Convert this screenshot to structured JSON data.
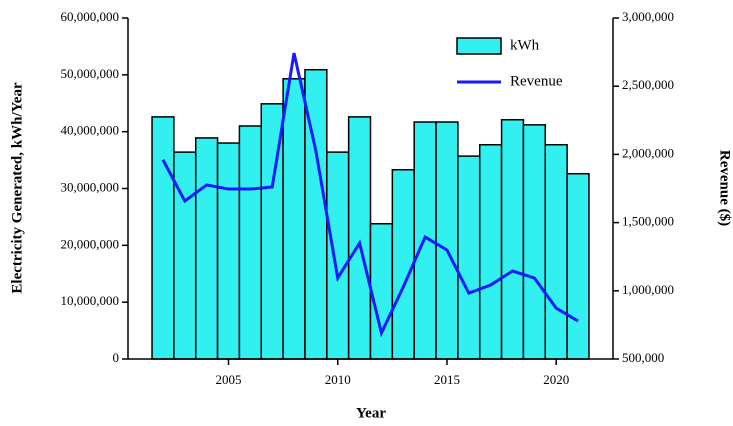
{
  "chart_data": {
    "type": "bar_line",
    "x": [
      2002,
      2003,
      2004,
      2005,
      2006,
      2007,
      2008,
      2009,
      2010,
      2011,
      2012,
      2013,
      2014,
      2015,
      2016,
      2017,
      2018,
      2019,
      2020,
      2021
    ],
    "series": [
      {
        "name": "kWh",
        "type": "bar",
        "color": "#33f0f0",
        "axis": "y",
        "values": [
          42600000,
          36400000,
          38900000,
          38000000,
          41000000,
          44900000,
          49300000,
          50900000,
          36400000,
          42600000,
          23800000,
          33300000,
          41700000,
          41700000,
          35700000,
          37700000,
          42100000,
          41200000,
          37700000,
          32600000
        ]
      },
      {
        "name": "Revenue",
        "type": "line",
        "color": "#1a1aff",
        "axis": "y2",
        "values": [
          1960000,
          1658000,
          1776000,
          1746000,
          1746000,
          1761000,
          2743000,
          2025000,
          1094000,
          1350000,
          691000,
          1028000,
          1394000,
          1299000,
          983000,
          1042000,
          1145000,
          1094000,
          873000,
          778000
        ]
      }
    ],
    "xlabel": "Year",
    "ylabel": "Electricity Generated, kWh/Year",
    "y2label": "Revenue ($)",
    "xlim": [
      2000.4,
      2022.6
    ],
    "xticks": [
      2005,
      2010,
      2015,
      2020
    ],
    "ylim": [
      0,
      60000000
    ],
    "yticks": [
      0,
      {
        "value": 10000000,
        "label": "10,000,000"
      },
      {
        "value": 20000000,
        "label": "20,000,000"
      },
      {
        "value": 30000000,
        "label": "30,000,000"
      },
      {
        "value": 40000000,
        "label": "40,000,000"
      },
      {
        "value": 50000000,
        "label": "50,000,000"
      },
      {
        "value": 60000000,
        "label": "60,000,000"
      }
    ],
    "y2lim": [
      500000,
      3000000
    ],
    "y2ticks": [
      {
        "value": 500000,
        "label": "500,000"
      },
      {
        "value": 1000000,
        "label": "1,000,000"
      },
      {
        "value": 1500000,
        "label": "1,500,000"
      },
      {
        "value": 2000000,
        "label": "2,000,000"
      },
      {
        "value": 2500000,
        "label": "2,500,000"
      },
      {
        "value": 3000000,
        "label": "3,000,000"
      }
    ],
    "legend": "upper right"
  }
}
